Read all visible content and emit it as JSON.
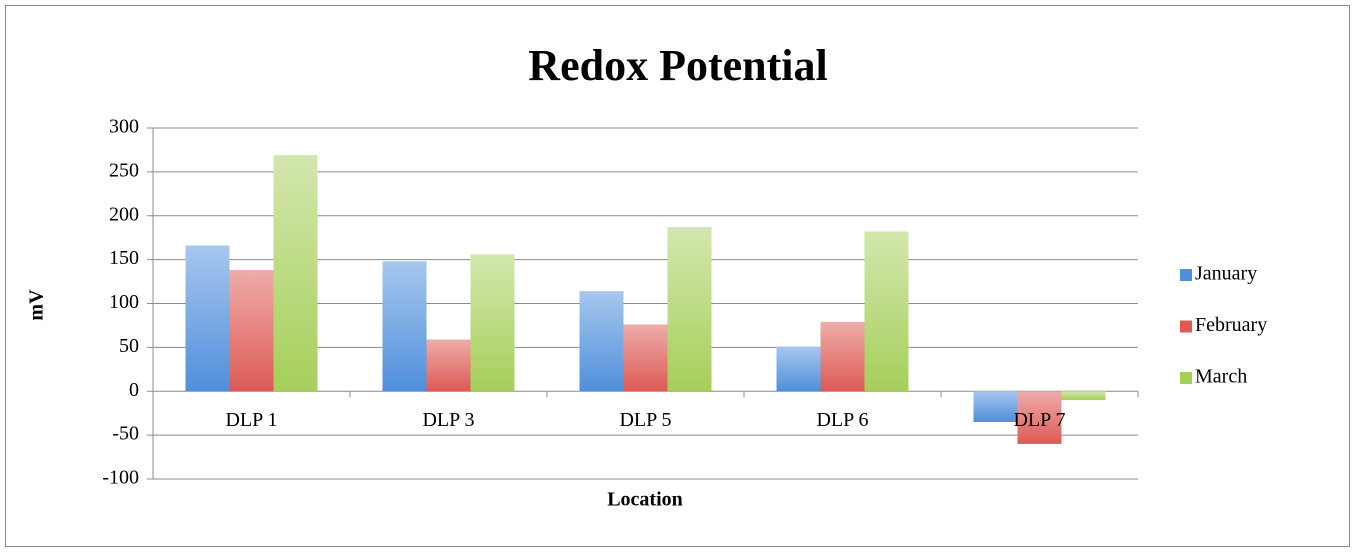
{
  "chart_data": {
    "type": "bar",
    "title": "Redox Potential",
    "x_label": "Location",
    "y_label": "mV",
    "categories": [
      "DLP 1",
      "DLP 3",
      "DLP 5",
      "DLP 6",
      "DLP 7"
    ],
    "series": [
      {
        "name": "January",
        "color": "#4f8fdc",
        "values": [
          166,
          148,
          114,
          51,
          -35
        ]
      },
      {
        "name": "February",
        "color": "#dd5a55",
        "values": [
          138,
          59,
          76,
          79,
          -60
        ]
      },
      {
        "name": "March",
        "color": "#a6cf5a",
        "values": [
          269,
          156,
          187,
          182,
          -10
        ]
      }
    ],
    "ylim": [
      -100,
      300
    ],
    "yticks": [
      -100,
      -50,
      0,
      50,
      100,
      150,
      200,
      250,
      300
    ],
    "grid": true,
    "legend": "right"
  }
}
